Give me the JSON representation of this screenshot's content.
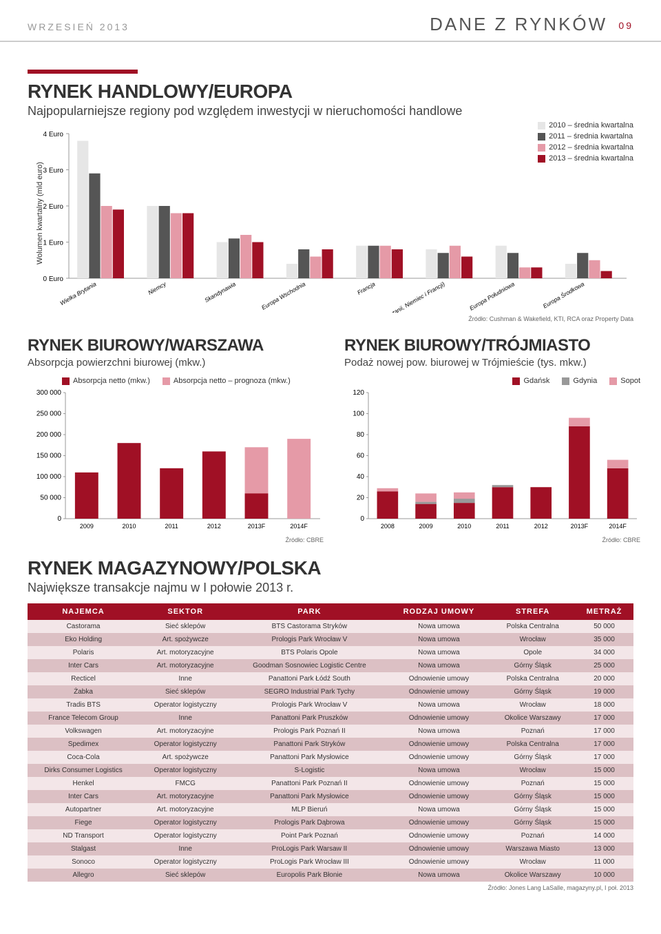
{
  "header": {
    "month": "WRZESIEŃ 2013",
    "title": "DANE Z RYNKÓW",
    "page": "09"
  },
  "chart1": {
    "type": "bar",
    "title": "RYNEK HANDLOWY/EUROPA",
    "subtitle": "Najpopularniejsze regiony pod względem inwestycji w nieruchomości handlowe",
    "ylabel": "Wolumen kwartalny (mld euro)",
    "legend": [
      "2010 – średnia kwartalna",
      "2011 – średnia kwartalna",
      "2012 – średnia kwartalna",
      "2013 – średnia kwartalna"
    ],
    "colors": [
      "#e6e6e6",
      "#555555",
      "#e59aa7",
      "#a01025"
    ],
    "categories": [
      "Wielka Brytania",
      "Niemcy",
      "Skandynawia",
      "Europa Wschodnia",
      "Francja",
      "Zachód (bez W. Brytanii, Niemiec i Francji)",
      "Europa Południowa",
      "Europa Środkowa"
    ],
    "ylim": [
      0,
      4
    ],
    "ytick_vals": [
      0,
      1,
      2,
      3,
      4
    ],
    "ytick_labels": [
      "0 Euro",
      "1 Euro",
      "2 Euro",
      "3 Euro",
      "4 Euro"
    ],
    "series": [
      [
        3.8,
        2.9,
        2.0,
        1.9
      ],
      [
        2.0,
        2.0,
        1.8,
        1.8
      ],
      [
        1.0,
        1.1,
        1.2,
        1.0
      ],
      [
        0.4,
        0.8,
        0.6,
        0.8
      ],
      [
        0.9,
        0.9,
        0.9,
        0.8
      ],
      [
        0.8,
        0.7,
        0.9,
        0.6
      ],
      [
        0.9,
        0.7,
        0.3,
        0.3
      ],
      [
        0.4,
        0.7,
        0.5,
        0.2
      ]
    ],
    "source": "Źródło: Cushman & Wakefield, KTI, RCA oraz Property Data"
  },
  "chart2": {
    "type": "bar",
    "title": "RYNEK BIUROWY/WARSZAWA",
    "subtitle": "Absorpcja powierzchni biurowej (mkw.)",
    "legend": [
      "Absorpcja netto (mkw.)",
      "Absorpcja netto – prognoza (mkw.)"
    ],
    "colors": [
      "#a01025",
      "#e59aa7"
    ],
    "categories": [
      "2009",
      "2010",
      "2011",
      "2012",
      "2013F",
      "2014F"
    ],
    "ylim": [
      0,
      300000
    ],
    "ytick_step": 50000,
    "ytick_vals": [
      0,
      50000,
      100000,
      150000,
      200000,
      250000,
      300000
    ],
    "ytick_labels": [
      "0",
      "50 000",
      "100 000",
      "150 000",
      "200 000",
      "250 000",
      "300 000"
    ],
    "netto": [
      110000,
      180000,
      120000,
      160000,
      60000,
      0
    ],
    "prognoza": [
      0,
      0,
      0,
      0,
      170000,
      190000
    ],
    "source": "Źródło: CBRE"
  },
  "chart3": {
    "type": "stacked-bar",
    "title": "RYNEK BIUROWY/TRÓJMIASTO",
    "subtitle": "Podaż nowej pow. biurowej w Trójmieście (tys. mkw.)",
    "legend": [
      "Gdańsk",
      "Gdynia",
      "Sopot"
    ],
    "colors": [
      "#a01025",
      "#999999",
      "#e59aa7"
    ],
    "categories": [
      "2008",
      "2009",
      "2010",
      "2011",
      "2012",
      "2013F",
      "2014F"
    ],
    "ylim": [
      0,
      120
    ],
    "ytick_step": 20,
    "ytick_vals": [
      0,
      20,
      40,
      60,
      80,
      100,
      120
    ],
    "gdansk": [
      26,
      14,
      15,
      30,
      30,
      88,
      48
    ],
    "gdynia": [
      0,
      2,
      4,
      2,
      0,
      0,
      0
    ],
    "sopot": [
      3,
      8,
      6,
      0,
      0,
      8,
      8
    ],
    "source": "Źródło: CBRE"
  },
  "table1": {
    "title": "RYNEK MAGAZYNOWY/POLSKA",
    "subtitle": "Największe transakcje najmu w I połowie 2013 r.",
    "columns": [
      "NAJEMCA",
      "SEKTOR",
      "PARK",
      "RODZAJ UMOWY",
      "STREFA",
      "METRAŻ"
    ],
    "rows": [
      [
        "Castorama",
        "Sieć sklepów",
        "BTS Castorama Stryków",
        "Nowa umowa",
        "Polska Centralna",
        "50 000"
      ],
      [
        "Eko Holding",
        "Art. spożywcze",
        "Prologis Park Wrocław V",
        "Nowa umowa",
        "Wrocław",
        "35 000"
      ],
      [
        "Polaris",
        "Art. motoryzacyjne",
        "BTS Polaris Opole",
        "Nowa umowa",
        "Opole",
        "34 000"
      ],
      [
        "Inter Cars",
        "Art. motoryzacyjne",
        "Goodman Sosnowiec Logistic Centre",
        "Nowa umowa",
        "Górny Śląsk",
        "25 000"
      ],
      [
        "Recticel",
        "Inne",
        "Panattoni Park Łódź South",
        "Odnowienie umowy",
        "Polska Centralna",
        "20 000"
      ],
      [
        "Żabka",
        "Sieć sklepów",
        "SEGRO Industrial Park Tychy",
        "Odnowienie umowy",
        "Górny Śląsk",
        "19 000"
      ],
      [
        "Tradis BTS",
        "Operator logistyczny",
        "Prologis Park Wrocław V",
        "Nowa umowa",
        "Wrocław",
        "18 000"
      ],
      [
        "France Telecom Group",
        "Inne",
        "Panattoni Park Pruszków",
        "Odnowienie umowy",
        "Okolice Warszawy",
        "17 000"
      ],
      [
        "Volkswagen",
        "Art. motoryzacyjne",
        "Prologis Park Poznań II",
        "Nowa umowa",
        "Poznań",
        "17 000"
      ],
      [
        "Spedimex",
        "Operator logistyczny",
        "Panattoni Park Stryków",
        "Odnowienie umowy",
        "Polska Centralna",
        "17 000"
      ],
      [
        "Coca-Cola",
        "Art. spożywcze",
        "Panattoni Park Mysłowice",
        "Odnowienie umowy",
        "Górny Śląsk",
        "17 000"
      ],
      [
        "Dirks Consumer Logistics",
        "Operator logistyczny",
        "S-Logistic",
        "Nowa umowa",
        "Wrocław",
        "15 000"
      ],
      [
        "Henkel",
        "FMCG",
        "Panattoni Park Poznań II",
        "Odnowienie umowy",
        "Poznań",
        "15 000"
      ],
      [
        "Inter Cars",
        "Art. motoryzacyjne",
        "Panattoni Park Mysłowice",
        "Odnowienie umowy",
        "Górny Śląsk",
        "15 000"
      ],
      [
        "Autopartner",
        "Art. motoryzacyjne",
        "MLP Bieruń",
        "Nowa umowa",
        "Górny Śląsk",
        "15 000"
      ],
      [
        "Fiege",
        "Operator logistyczny",
        "Prologis Park Dąbrowa",
        "Odnowienie umowy",
        "Górny Śląsk",
        "15 000"
      ],
      [
        "ND Transport",
        "Operator logistyczny",
        "Point Park Poznań",
        "Odnowienie umowy",
        "Poznań",
        "14 000"
      ],
      [
        "Stalgast",
        "Inne",
        "ProLogis Park Warsaw II",
        "Odnowienie umowy",
        "Warszawa Miasto",
        "13 000"
      ],
      [
        "Sonoco",
        "Operator logistyczny",
        "ProLogis Park Wrocław III",
        "Odnowienie umowy",
        "Wrocław",
        "11 000"
      ],
      [
        "Allegro",
        "Sieć sklepów",
        "Europolis Park Błonie",
        "Nowa umowa",
        "Okolice Warszawy",
        "10 000"
      ]
    ],
    "source": "Źródło: Jones Lang LaSalle, magazyny.pl, I poł. 2013"
  }
}
